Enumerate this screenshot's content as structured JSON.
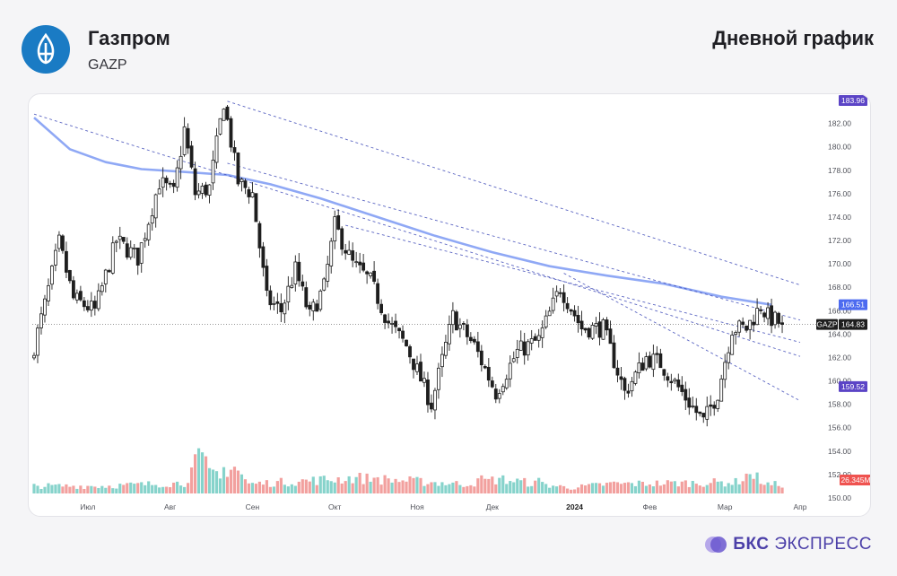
{
  "header": {
    "company": "Газпром",
    "ticker": "GAZP",
    "chart_title": "Дневной график"
  },
  "brand": {
    "bold": "БКС",
    "light": "ЭКСПРЕСС"
  },
  "colors": {
    "up": "#26a69a",
    "down": "#ef5350",
    "candle_up_fill": "#ffffff",
    "candle_border": "#1e1e1e",
    "ma": "#8fa8f5",
    "trendline": "#3f4bb8",
    "price_tag": "#1e1e1e",
    "level_tag": "#5b44c6",
    "ma_tag": "#4d6bf0",
    "logo": "#1a7bc4",
    "brand": "#4b3fa8"
  },
  "chart_data": {
    "type": "candlestick",
    "title": "",
    "xlabel": "",
    "ylabel": "",
    "ylim": [
      150,
      184.5
    ],
    "y_ticks": [
      "150.00",
      "152.00",
      "154.00",
      "156.00",
      "158.00",
      "160.00",
      "162.00",
      "164.00",
      "166.00",
      "168.00",
      "170.00",
      "172.00",
      "174.00",
      "176.00",
      "178.00",
      "180.00",
      "182.00"
    ],
    "x_ticks": [
      "Июл",
      "Авг",
      "Сен",
      "Окт",
      "Ноя",
      "Дек",
      "2024",
      "Фев",
      "Мар",
      "Апр"
    ],
    "bars": 210,
    "x_tick_positions": [
      15,
      38,
      61,
      84,
      107,
      128,
      151,
      172,
      193,
      214
    ],
    "price_anchors": [
      [
        0,
        161.8
      ],
      [
        4,
        166.5
      ],
      [
        8,
        171.8
      ],
      [
        12,
        167
      ],
      [
        18,
        166
      ],
      [
        24,
        172
      ],
      [
        30,
        170.5
      ],
      [
        36,
        177
      ],
      [
        40,
        176
      ],
      [
        43,
        181.5
      ],
      [
        46,
        176
      ],
      [
        50,
        176.5
      ],
      [
        54,
        183.9
      ],
      [
        58,
        177
      ],
      [
        62,
        176
      ],
      [
        66,
        167
      ],
      [
        70,
        166
      ],
      [
        74,
        169.5
      ],
      [
        78,
        165.5
      ],
      [
        82,
        168
      ],
      [
        85,
        173.3
      ],
      [
        90,
        170
      ],
      [
        95,
        168.5
      ],
      [
        100,
        165
      ],
      [
        105,
        163
      ],
      [
        112,
        158
      ],
      [
        118,
        165.5
      ],
      [
        124,
        163
      ],
      [
        130,
        159
      ],
      [
        136,
        162.5
      ],
      [
        142,
        163.5
      ],
      [
        148,
        168
      ],
      [
        154,
        164.5
      ],
      [
        160,
        164.5
      ],
      [
        166,
        159
      ],
      [
        172,
        162
      ],
      [
        176,
        161.5
      ],
      [
        182,
        159
      ],
      [
        188,
        156.5
      ],
      [
        192,
        159
      ],
      [
        196,
        164.5
      ],
      [
        200,
        164.5
      ],
      [
        204,
        166.4
      ],
      [
        206,
        165.5
      ],
      [
        210,
        164.83
      ]
    ],
    "volume_anchors": [
      [
        0,
        1.2
      ],
      [
        20,
        1.2
      ],
      [
        42,
        1.7
      ],
      [
        47,
        6.5
      ],
      [
        49,
        3
      ],
      [
        56,
        4.5
      ],
      [
        60,
        1.5
      ],
      [
        90,
        2.5
      ],
      [
        120,
        1.5
      ],
      [
        130,
        2.3
      ],
      [
        150,
        0.9
      ],
      [
        160,
        1.5
      ],
      [
        196,
        1.8
      ],
      [
        200,
        3.2
      ],
      [
        205,
        1.4
      ],
      [
        210,
        1.5
      ]
    ],
    "volume_spikes": [
      [
        47,
        6.6
      ],
      [
        56,
        4.3
      ],
      [
        125,
        2.9
      ],
      [
        141,
        2.5
      ],
      [
        162,
        1.9
      ],
      [
        200,
        3.1
      ],
      [
        96,
        2.6
      ],
      [
        52,
        2.4
      ]
    ],
    "volume_ylim": [
      0,
      7.2
    ],
    "ma": [
      [
        0,
        182.5
      ],
      [
        10,
        179.8
      ],
      [
        20,
        178.7
      ],
      [
        30,
        178.1
      ],
      [
        40,
        177.9
      ],
      [
        54,
        177.6
      ],
      [
        66,
        176.8
      ],
      [
        80,
        175.6
      ],
      [
        96,
        174
      ],
      [
        112,
        172.4
      ],
      [
        128,
        171
      ],
      [
        144,
        169.8
      ],
      [
        160,
        169
      ],
      [
        176,
        168.3
      ],
      [
        192,
        167.2
      ],
      [
        206,
        166.51
      ]
    ],
    "trendlines": [
      [
        [
          0,
          182.8
        ],
        [
          214,
          162.1
        ]
      ],
      [
        [
          54,
          183.9
        ],
        [
          214,
          168.2
        ]
      ],
      [
        [
          54,
          178.6
        ],
        [
          214,
          165.2
        ]
      ],
      [
        [
          87,
          173.3
        ],
        [
          214,
          163.3
        ]
      ],
      [
        [
          148,
          169.2
        ],
        [
          214,
          158.3
        ]
      ]
    ],
    "current_price": 164.83,
    "price_tags": [
      {
        "label": "183.96",
        "value": 183.96,
        "role": "level"
      },
      {
        "label": "166.51",
        "value": 166.51,
        "role": "ma"
      },
      {
        "label": "GAZP",
        "value": 164.83,
        "role": "ticker"
      },
      {
        "label": "164.83",
        "value": 164.83,
        "role": "price"
      },
      {
        "label": "159.52",
        "value": 159.52,
        "role": "level"
      },
      {
        "label": "26.345M",
        "value": 151.3,
        "role": "volume"
      }
    ]
  }
}
